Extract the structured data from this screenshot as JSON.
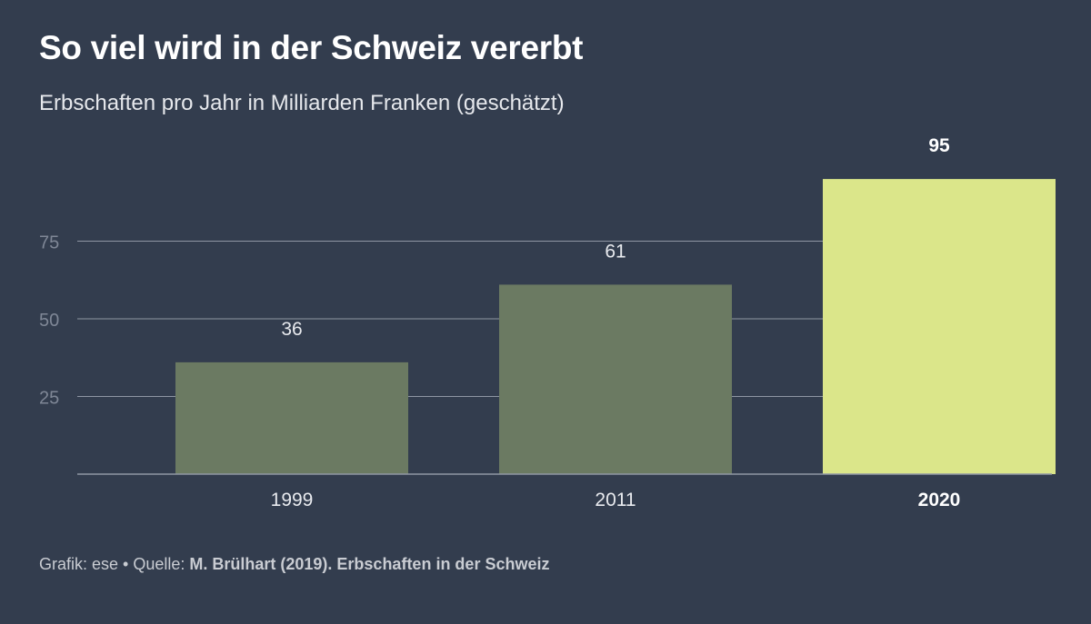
{
  "title": "So viel wird in der Schweiz vererbt",
  "subtitle": "Erbschaften pro Jahr in Milliarden Franken (geschätzt)",
  "footer": {
    "prefix": "Grafik: ese • Quelle: ",
    "source": "M. Brülhart (2019). Erbschaften in der Schweiz"
  },
  "colors": {
    "background": "#333d4e",
    "bar": "#6b7a62",
    "highlight": "#dbe68a",
    "grid": "#8f96a3",
    "tick_text": "#7f8796",
    "label_text": "#e8eaee",
    "highlight_text": "#ffffff"
  },
  "chart_data": {
    "type": "bar",
    "title": "So viel wird in der Schweiz vererbt",
    "subtitle": "Erbschaften pro Jahr in Milliarden Franken (geschätzt)",
    "categories": [
      "1999",
      "2011",
      "2020"
    ],
    "values": [
      36,
      61,
      95
    ],
    "value_labels": [
      "36",
      "61",
      "95"
    ],
    "highlight_index": 2,
    "xlabel": "",
    "ylabel": "",
    "ylim": [
      0,
      100
    ],
    "yticks": [
      25,
      50,
      75
    ],
    "ytick_labels": [
      "25",
      "50",
      "75"
    ],
    "grid": true,
    "legend": "none"
  }
}
